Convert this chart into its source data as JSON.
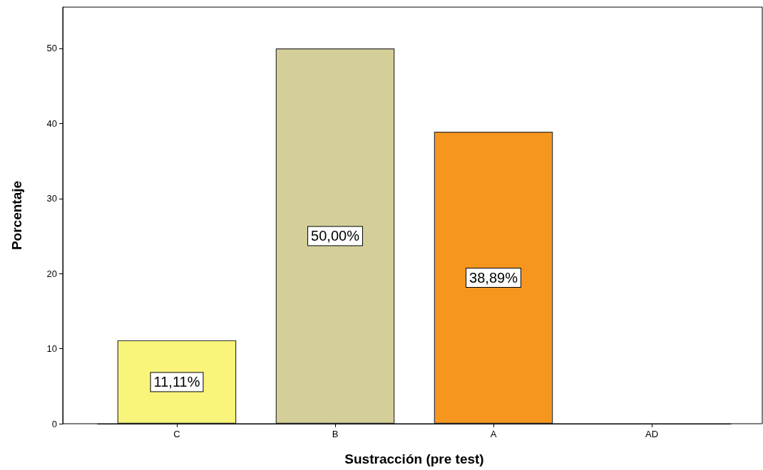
{
  "chart_data": {
    "type": "bar",
    "xlabel": "Sustracción (pre test)",
    "ylabel": "Porcentaje",
    "categories": [
      "C",
      "B",
      "A",
      "AD"
    ],
    "values": [
      11.11,
      50,
      38.89,
      0
    ],
    "colors": [
      "#f9f47a",
      "#d4ce98",
      "#f7961f",
      "#f7961f"
    ],
    "value_labels": [
      "11,11%",
      "50,00%",
      "38,89%",
      null
    ],
    "ylim": [
      0,
      55.5
    ],
    "yticks": [
      0,
      10,
      20,
      30,
      40,
      50
    ],
    "grid": false
  }
}
